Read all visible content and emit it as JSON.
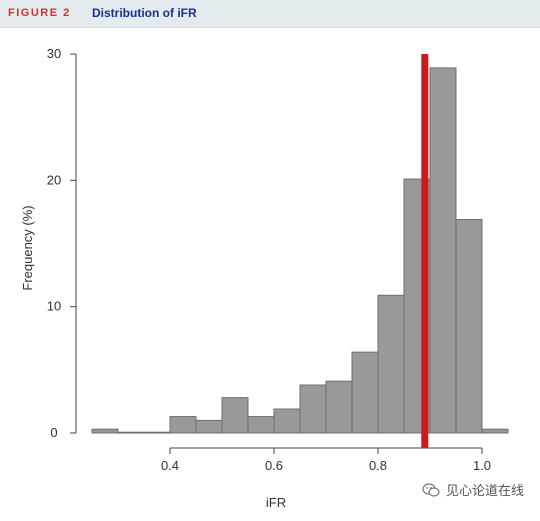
{
  "header": {
    "figure_label": "FIGURE 2",
    "title": "Distribution of iFR"
  },
  "watermark": {
    "text": "见心论道在线",
    "icon": "wechat-icon"
  },
  "chart_data": {
    "type": "bar",
    "subtype": "histogram",
    "title": "",
    "xlabel": "iFR",
    "ylabel": "Frequency (%)",
    "xlim": [
      0.25,
      1.05
    ],
    "ylim": [
      0,
      30
    ],
    "x_ticks": [
      0.4,
      0.6,
      0.8,
      1.0
    ],
    "x_tick_labels": [
      "0.4",
      "0.6",
      "0.8",
      "1.0"
    ],
    "y_ticks": [
      0,
      10,
      20,
      30
    ],
    "y_tick_labels": [
      "0",
      "10",
      "20",
      "30"
    ],
    "bin_width": 0.05,
    "bins": [
      {
        "start": 0.25,
        "end": 0.3,
        "value": 0.3
      },
      {
        "start": 0.3,
        "end": 0.35,
        "value": 0.0
      },
      {
        "start": 0.35,
        "end": 0.4,
        "value": 0.0
      },
      {
        "start": 0.4,
        "end": 0.45,
        "value": 1.3
      },
      {
        "start": 0.45,
        "end": 0.5,
        "value": 1.0
      },
      {
        "start": 0.5,
        "end": 0.55,
        "value": 2.8
      },
      {
        "start": 0.55,
        "end": 0.6,
        "value": 1.3
      },
      {
        "start": 0.6,
        "end": 0.65,
        "value": 1.9
      },
      {
        "start": 0.65,
        "end": 0.7,
        "value": 3.8
      },
      {
        "start": 0.7,
        "end": 0.75,
        "value": 4.1
      },
      {
        "start": 0.75,
        "end": 0.8,
        "value": 6.4
      },
      {
        "start": 0.8,
        "end": 0.85,
        "value": 10.9
      },
      {
        "start": 0.85,
        "end": 0.9,
        "value": 20.1
      },
      {
        "start": 0.9,
        "end": 0.95,
        "value": 28.9
      },
      {
        "start": 0.95,
        "end": 1.0,
        "value": 16.9
      },
      {
        "start": 1.0,
        "end": 1.05,
        "value": 0.3
      }
    ],
    "reference_line": {
      "x": 0.89
    },
    "grid": false,
    "legend": "none",
    "colors": {
      "bar_fill": "#999999",
      "bar_stroke": "#6e6e6e",
      "reference_line": "#cc1a1a",
      "axis": "#444444"
    }
  }
}
